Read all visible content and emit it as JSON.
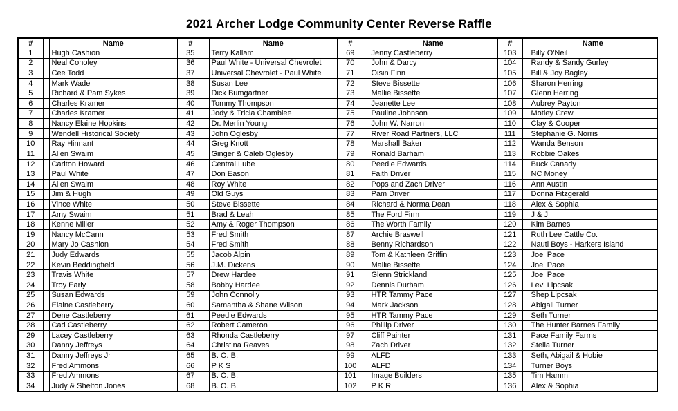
{
  "title": "2021 Archer Lodge Community Center Reverse Raffle",
  "colors": {
    "border": "#000000",
    "text": "#000000",
    "background": "#ffffff"
  },
  "table": {
    "number_header": "#",
    "name_header": "Name",
    "rows_per_column": 34,
    "column_groups": 4,
    "entries": [
      {
        "n": 1,
        "name": "Hugh Cashion"
      },
      {
        "n": 2,
        "name": "Neal Conoley"
      },
      {
        "n": 3,
        "name": "Cee Todd"
      },
      {
        "n": 4,
        "name": "Mark Wade"
      },
      {
        "n": 5,
        "name": "Richard & Pam Sykes"
      },
      {
        "n": 6,
        "name": "Charles Kramer"
      },
      {
        "n": 7,
        "name": "Charles Kramer"
      },
      {
        "n": 8,
        "name": "Nancy Elaine Hopkins"
      },
      {
        "n": 9,
        "name": "Wendell Historical Society"
      },
      {
        "n": 10,
        "name": "Ray Hinnant"
      },
      {
        "n": 11,
        "name": "Allen Swaim"
      },
      {
        "n": 12,
        "name": "Carlton Howard"
      },
      {
        "n": 13,
        "name": "Paul White"
      },
      {
        "n": 14,
        "name": "Allen Swaim"
      },
      {
        "n": 15,
        "name": "Jim & Hugh"
      },
      {
        "n": 16,
        "name": "Vince White"
      },
      {
        "n": 17,
        "name": "Amy Swaim"
      },
      {
        "n": 18,
        "name": "Kenne Miller"
      },
      {
        "n": 19,
        "name": "Nancy McCann"
      },
      {
        "n": 20,
        "name": "Mary Jo Cashion"
      },
      {
        "n": 21,
        "name": "Judy Edwards"
      },
      {
        "n": 22,
        "name": "Kevin Beddingfield"
      },
      {
        "n": 23,
        "name": "Travis White"
      },
      {
        "n": 24,
        "name": "Troy Early"
      },
      {
        "n": 25,
        "name": "Susan Edwards"
      },
      {
        "n": 26,
        "name": "Elaine Castleberry"
      },
      {
        "n": 27,
        "name": "Dene Castleberry"
      },
      {
        "n": 28,
        "name": "Cad Castleberry"
      },
      {
        "n": 29,
        "name": "Lacey Castleberry"
      },
      {
        "n": 30,
        "name": "Danny Jeffreys"
      },
      {
        "n": 31,
        "name": "Danny Jeffreys Jr"
      },
      {
        "n": 32,
        "name": "Fred Ammons"
      },
      {
        "n": 33,
        "name": "Fred Ammons"
      },
      {
        "n": 34,
        "name": "Judy & Shelton Jones"
      },
      {
        "n": 35,
        "name": "Terry Kallam"
      },
      {
        "n": 36,
        "name": "Paul White - Universal Chevrolet"
      },
      {
        "n": 37,
        "name": "Universal Chevrolet - Paul White"
      },
      {
        "n": 38,
        "name": "Susan Lee"
      },
      {
        "n": 39,
        "name": "Dick Bumgartner"
      },
      {
        "n": 40,
        "name": "Tommy Thompson"
      },
      {
        "n": 41,
        "name": "Jody & Tricia Chamblee"
      },
      {
        "n": 42,
        "name": "Dr. Merlin Young"
      },
      {
        "n": 43,
        "name": "John Oglesby"
      },
      {
        "n": 44,
        "name": "Greg Knott"
      },
      {
        "n": 45,
        "name": "Ginger & Caleb Oglesby"
      },
      {
        "n": 46,
        "name": "Central Lube"
      },
      {
        "n": 47,
        "name": "Don Eason"
      },
      {
        "n": 48,
        "name": "Roy White"
      },
      {
        "n": 49,
        "name": "Old Guys"
      },
      {
        "n": 50,
        "name": "Steve Bissette"
      },
      {
        "n": 51,
        "name": "Brad & Leah"
      },
      {
        "n": 52,
        "name": "Amy & Roger Thompson"
      },
      {
        "n": 53,
        "name": "Fred Smith"
      },
      {
        "n": 54,
        "name": "Fred Smith"
      },
      {
        "n": 55,
        "name": "Jacob Alpin"
      },
      {
        "n": 56,
        "name": "J.M. Dickens"
      },
      {
        "n": 57,
        "name": "Drew Hardee"
      },
      {
        "n": 58,
        "name": "Bobby Hardee"
      },
      {
        "n": 59,
        "name": "John Connolly"
      },
      {
        "n": 60,
        "name": "Samantha & Shane Wilson"
      },
      {
        "n": 61,
        "name": "Peedie Edwards"
      },
      {
        "n": 62,
        "name": "Robert Cameron"
      },
      {
        "n": 63,
        "name": "Rhonda Castleberry"
      },
      {
        "n": 64,
        "name": "Christina Reaves"
      },
      {
        "n": 65,
        "name": "B. O. B."
      },
      {
        "n": 66,
        "name": "P K S"
      },
      {
        "n": 67,
        "name": "B. O. B."
      },
      {
        "n": 68,
        "name": "B. O. B."
      },
      {
        "n": 69,
        "name": "Jenny Castleberry"
      },
      {
        "n": 70,
        "name": "John & Darcy"
      },
      {
        "n": 71,
        "name": "Oisin Finn"
      },
      {
        "n": 72,
        "name": "Steve Bissette"
      },
      {
        "n": 73,
        "name": "Mallie Bissette"
      },
      {
        "n": 74,
        "name": "Jeanette Lee"
      },
      {
        "n": 75,
        "name": "Pauline Johnson"
      },
      {
        "n": 76,
        "name": "John W. Narron"
      },
      {
        "n": 77,
        "name": "River Road Partners, LLC"
      },
      {
        "n": 78,
        "name": "Marshall Baker"
      },
      {
        "n": 79,
        "name": "Ronald Barham"
      },
      {
        "n": 80,
        "name": "Peedie Edwards"
      },
      {
        "n": 81,
        "name": "Faith Driver"
      },
      {
        "n": 82,
        "name": "Pops and Zach Driver"
      },
      {
        "n": 83,
        "name": "Pam Driver"
      },
      {
        "n": 84,
        "name": "Richard & Norma Dean"
      },
      {
        "n": 85,
        "name": "The Ford Firm"
      },
      {
        "n": 86,
        "name": "The Worth Family"
      },
      {
        "n": 87,
        "name": "Archie Braswell"
      },
      {
        "n": 88,
        "name": "Benny Richardson"
      },
      {
        "n": 89,
        "name": "Tom & Kathleen Griffin"
      },
      {
        "n": 90,
        "name": "Mallie Bissette"
      },
      {
        "n": 91,
        "name": "Glenn Strickland"
      },
      {
        "n": 92,
        "name": "Dennis Durham"
      },
      {
        "n": 93,
        "name": "HTR Tammy Pace"
      },
      {
        "n": 94,
        "name": "Mark Jackson"
      },
      {
        "n": 95,
        "name": "HTR Tammy Pace"
      },
      {
        "n": 96,
        "name": "Phillip Driver"
      },
      {
        "n": 97,
        "name": "Cliff Painter"
      },
      {
        "n": 98,
        "name": "Zach Driver"
      },
      {
        "n": 99,
        "name": "ALFD"
      },
      {
        "n": 100,
        "name": "ALFD"
      },
      {
        "n": 101,
        "name": "Image Builders"
      },
      {
        "n": 102,
        "name": "P K R"
      },
      {
        "n": 103,
        "name": "Billy O'Neil"
      },
      {
        "n": 104,
        "name": "Randy & Sandy Gurley"
      },
      {
        "n": 105,
        "name": "Bill & Joy Bagley"
      },
      {
        "n": 106,
        "name": "Sharon Herring"
      },
      {
        "n": 107,
        "name": "Glenn Herring"
      },
      {
        "n": 108,
        "name": "Aubrey Payton"
      },
      {
        "n": 109,
        "name": "Motley Crew"
      },
      {
        "n": 110,
        "name": "Clay & Cooper"
      },
      {
        "n": 111,
        "name": "Stephanie G. Norris"
      },
      {
        "n": 112,
        "name": "Wanda Benson"
      },
      {
        "n": 113,
        "name": "Robbie Oakes"
      },
      {
        "n": 114,
        "name": "Buck Canady"
      },
      {
        "n": 115,
        "name": "NC Money"
      },
      {
        "n": 116,
        "name": "Ann Austin"
      },
      {
        "n": 117,
        "name": "Donna Fitzgerald"
      },
      {
        "n": 118,
        "name": "Alex & Sophia"
      },
      {
        "n": 119,
        "name": "J & J"
      },
      {
        "n": 120,
        "name": "Kim Barnes"
      },
      {
        "n": 121,
        "name": "Ruth Lee Cattle Co."
      },
      {
        "n": 122,
        "name": "Nauti Boys - Harkers Island"
      },
      {
        "n": 123,
        "name": "Joel Pace"
      },
      {
        "n": 124,
        "name": "Joel Pace"
      },
      {
        "n": 125,
        "name": "Joel Pace"
      },
      {
        "n": 126,
        "name": "Levi Lipcsak"
      },
      {
        "n": 127,
        "name": "Shep Lipcsak"
      },
      {
        "n": 128,
        "name": "Abigail Turner"
      },
      {
        "n": 129,
        "name": "Seth Turner"
      },
      {
        "n": 130,
        "name": "The Hunter Barnes Family"
      },
      {
        "n": 131,
        "name": "Pace Family Farms"
      },
      {
        "n": 132,
        "name": "Stella Turner"
      },
      {
        "n": 133,
        "name": "Seth, Abigail & Hobie"
      },
      {
        "n": 134,
        "name": "Turner Boys"
      },
      {
        "n": 135,
        "name": "Tim Hamm"
      },
      {
        "n": 136,
        "name": "Alex & Sophia"
      }
    ]
  }
}
